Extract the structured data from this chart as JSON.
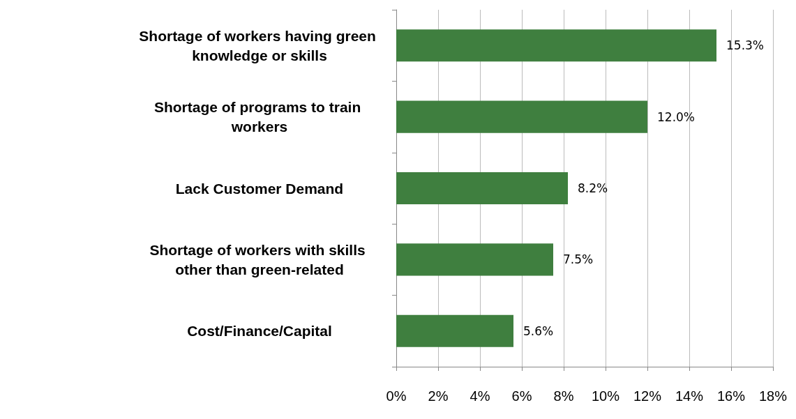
{
  "chart_data": {
    "type": "bar",
    "orientation": "horizontal",
    "categories": [
      "Shortage of workers having green knowledge or skills",
      "Shortage of programs to train workers",
      "Lack Customer Demand",
      "Shortage of workers with skills other than green-related",
      "Cost/Finance/Capital"
    ],
    "values": [
      15.3,
      12.0,
      8.2,
      7.5,
      5.6
    ],
    "value_labels": [
      "15.3%",
      "12.0%",
      "8.2%",
      "7.5%",
      "5.6%"
    ],
    "color": "#3f7f3f",
    "xlim": [
      0,
      18
    ],
    "xticks": [
      {
        "value": 0,
        "label": "0%"
      },
      {
        "value": 2,
        "label": "2%"
      },
      {
        "value": 4,
        "label": "4%"
      },
      {
        "value": 6,
        "label": "6%"
      },
      {
        "value": 8,
        "label": "8%"
      },
      {
        "value": 10,
        "label": "10%"
      },
      {
        "value": 12,
        "label": "12%"
      },
      {
        "value": 14,
        "label": "14%"
      },
      {
        "value": 16,
        "label": "16%"
      },
      {
        "value": 18,
        "label": "18%"
      }
    ],
    "grid": "x"
  }
}
